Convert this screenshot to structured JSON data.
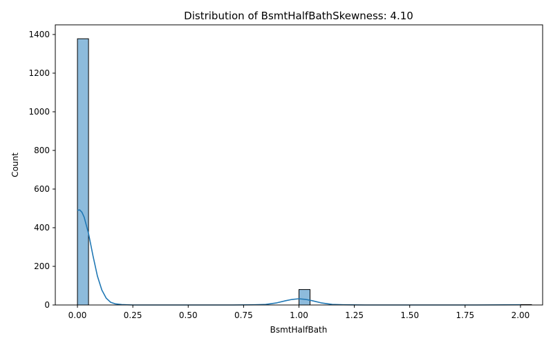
{
  "chart_data": {
    "type": "histogram",
    "title": "Distribution of BsmtHalfBathSkewness: 4.10",
    "xlabel": "BsmtHalfBath",
    "ylabel": "Count",
    "xlim": [
      -0.1,
      2.1
    ],
    "ylim": [
      0,
      1450
    ],
    "x_ticks": [
      "0.00",
      "0.25",
      "0.50",
      "0.75",
      "1.00",
      "1.25",
      "1.50",
      "1.75",
      "2.00"
    ],
    "y_ticks": [
      "0",
      "200",
      "400",
      "600",
      "800",
      "1000",
      "1200",
      "1400"
    ],
    "bin_width": 0.05,
    "bars": [
      {
        "x": 0.0,
        "count": 1378
      },
      {
        "x": 1.0,
        "count": 80
      },
      {
        "x": 2.0,
        "count": 2
      }
    ],
    "kde": {
      "x": [
        0.0,
        0.01,
        0.02,
        0.03,
        0.05,
        0.07,
        0.09,
        0.11,
        0.13,
        0.15,
        0.17,
        0.2,
        0.25,
        0.3,
        0.5,
        0.7,
        0.8,
        0.85,
        0.9,
        0.94,
        0.97,
        1.0,
        1.03,
        1.06,
        1.1,
        1.15,
        1.2,
        1.3,
        1.5,
        1.8,
        2.0
      ],
      "y": [
        490,
        492,
        480,
        455,
        370,
        255,
        150,
        78,
        35,
        14,
        6,
        2,
        0,
        0,
        0,
        0,
        1,
        3,
        11,
        22,
        29,
        32,
        29,
        22,
        11,
        3,
        1,
        0,
        0,
        0,
        1
      ]
    },
    "bar_color": "#8dbbdc",
    "line_color": "#1f77b4",
    "grid": false
  }
}
